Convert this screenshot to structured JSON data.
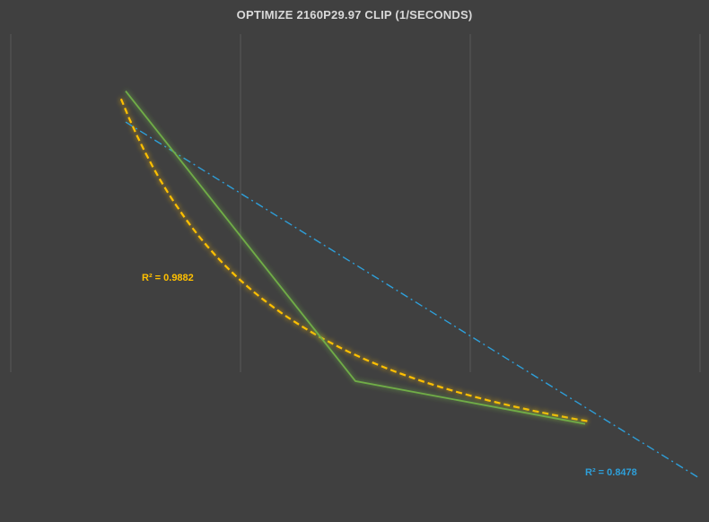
{
  "chart_data": {
    "type": "line",
    "title": "OPTIMIZE 2160P29.97 CLIP (1/SECONDS)",
    "xlabel": "",
    "ylabel": "",
    "x": [
      1,
      2,
      3
    ],
    "xlim": [
      0.5,
      3.5
    ],
    "ylim": [
      0,
      1
    ],
    "grid": {
      "vertical": true,
      "horizontal": false
    },
    "series": [
      {
        "role": "data",
        "color": "#70ad47",
        "x": [
          1,
          2,
          3
        ],
        "values": [
          0.88,
          0.27,
          0.18
        ]
      }
    ],
    "trendlines": [
      {
        "kind": "power",
        "color": "#ffc000",
        "style": "dashed",
        "r2_label": "R² = 0.9882",
        "a": 0.84,
        "b": -1.37,
        "label_position": "left"
      },
      {
        "kind": "linear",
        "color": "#2e9fd9",
        "style": "dash-dot",
        "r2_label": "R² = 0.8478",
        "x_end": 3.5,
        "slope": -0.3,
        "intercept": 1.115,
        "label_position": "bottom-right"
      }
    ],
    "colors": {
      "background": "#404040",
      "gridline": "#595959",
      "title": "#d9d9d9"
    }
  }
}
